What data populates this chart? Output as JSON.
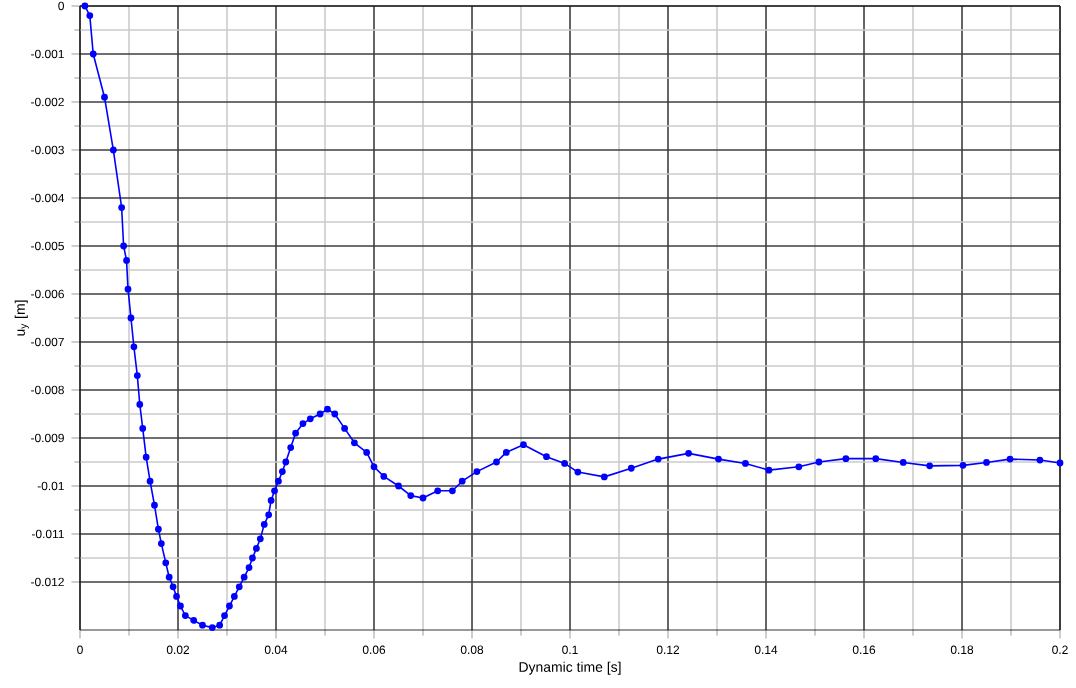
{
  "chart_data": {
    "type": "line",
    "xlabel": "Dynamic time [s]",
    "ylabel": "u$_{y}$ [m]",
    "xlim": [
      0,
      0.2
    ],
    "ylim": [
      -0.013,
      0
    ],
    "xticks": [
      0,
      0.02,
      0.04,
      0.06,
      0.08,
      0.1,
      0.12,
      0.14,
      0.16,
      0.18,
      0.2
    ],
    "yticks": [
      0,
      -0.001,
      -0.002,
      -0.003,
      -0.004,
      -0.005,
      -0.006,
      -0.007,
      -0.008,
      -0.009,
      -0.01,
      -0.011,
      -0.012
    ],
    "grid": true,
    "marker": "circle",
    "line_style": "solid",
    "series": [
      {
        "color": "#0000ff",
        "x": [
          0.001,
          0.002,
          0.0027,
          0.005,
          0.0068,
          0.0085,
          0.0089,
          0.0095,
          0.0098,
          0.0104,
          0.011,
          0.0117,
          0.0122,
          0.0128,
          0.0135,
          0.0143,
          0.0152,
          0.016,
          0.0166,
          0.0175,
          0.0182,
          0.019,
          0.0197,
          0.0205,
          0.0215,
          0.0232,
          0.025,
          0.027,
          0.0285,
          0.0295,
          0.0305,
          0.0315,
          0.0325,
          0.0335,
          0.0345,
          0.0352,
          0.036,
          0.0368,
          0.0376,
          0.0385,
          0.039,
          0.0397,
          0.0405,
          0.0413,
          0.042,
          0.043,
          0.044,
          0.0455,
          0.047,
          0.049,
          0.0505,
          0.052,
          0.054,
          0.056,
          0.0585,
          0.06,
          0.062,
          0.065,
          0.0675,
          0.07,
          0.073,
          0.076,
          0.078,
          0.081,
          0.085,
          0.087,
          0.0905,
          0.0952,
          0.0989,
          0.1016,
          0.107,
          0.1125,
          0.118,
          0.1242,
          0.1303,
          0.1358,
          0.1406,
          0.1467,
          0.1508,
          0.1563,
          0.1624,
          0.168,
          0.1734,
          0.1802,
          0.185,
          0.1898,
          0.1959,
          0.2
        ],
        "values": [
          0,
          -0.0002,
          -0.001,
          -0.0019,
          -0.003,
          -0.0042,
          -0.005,
          -0.0053,
          -0.0059,
          -0.0065,
          -0.0071,
          -0.0077,
          -0.0083,
          -0.0088,
          -0.0094,
          -0.0099,
          -0.0104,
          -0.0109,
          -0.0112,
          -0.0116,
          -0.0119,
          -0.0121,
          -0.0123,
          -0.0125,
          -0.0127,
          -0.0128,
          -0.0129,
          -0.01295,
          -0.0129,
          -0.0127,
          -0.0125,
          -0.0123,
          -0.0121,
          -0.0119,
          -0.0117,
          -0.0115,
          -0.0113,
          -0.0111,
          -0.0108,
          -0.0106,
          -0.0103,
          -0.0101,
          -0.0099,
          -0.0097,
          -0.0095,
          -0.0092,
          -0.0089,
          -0.0087,
          -0.0086,
          -0.0085,
          -0.0084,
          -0.0085,
          -0.0088,
          -0.0091,
          -0.0093,
          -0.0096,
          -0.0098,
          -0.01,
          -0.0102,
          -0.01025,
          -0.0101,
          -0.0101,
          -0.0099,
          -0.0097,
          -0.0095,
          -0.0093,
          -0.00914,
          -0.00939,
          -0.00953,
          -0.00971,
          -0.00981,
          -0.00963,
          -0.00944,
          -0.00932,
          -0.00944,
          -0.00953,
          -0.00967,
          -0.0096,
          -0.0095,
          -0.00943,
          -0.00943,
          -0.00951,
          -0.00958,
          -0.00957,
          -0.00951,
          -0.00944,
          -0.00946,
          -0.00952
        ]
      }
    ]
  }
}
